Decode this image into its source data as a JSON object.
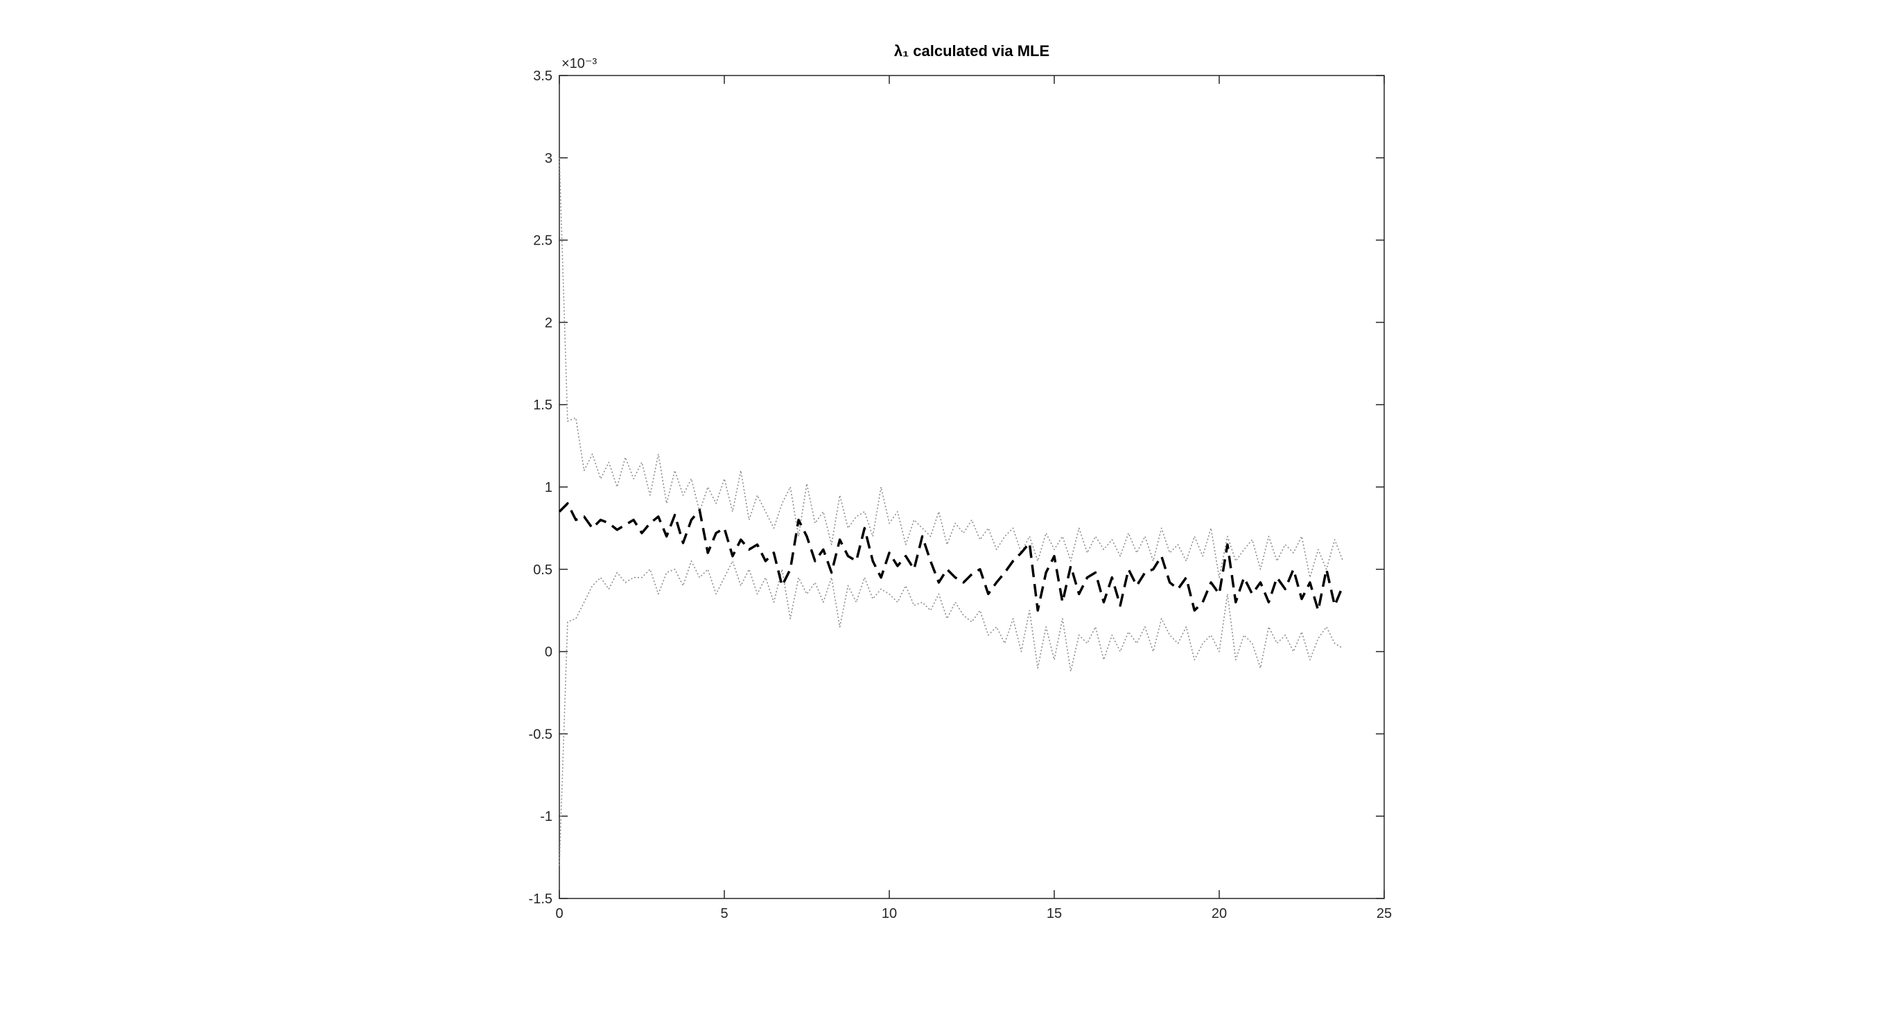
{
  "chart_data": {
    "type": "line",
    "title": "λ₁ calculated via MLE",
    "y_exponent_label": "×10⁻³",
    "xlim": [
      0,
      25
    ],
    "xticks": [
      0,
      5,
      10,
      15,
      20,
      25
    ],
    "ylim": [
      -1.5,
      3.5
    ],
    "yticks": [
      -1.5,
      -1,
      -0.5,
      0,
      0.5,
      1,
      1.5,
      2,
      2.5,
      3,
      3.5
    ],
    "grid": false,
    "x": [
      0,
      0.25,
      0.5,
      0.75,
      1,
      1.25,
      1.5,
      1.75,
      2,
      2.25,
      2.5,
      2.75,
      3,
      3.25,
      3.5,
      3.75,
      4,
      4.25,
      4.5,
      4.75,
      5,
      5.25,
      5.5,
      5.75,
      6,
      6.25,
      6.5,
      6.75,
      7,
      7.25,
      7.5,
      7.75,
      8,
      8.25,
      8.5,
      8.75,
      9,
      9.25,
      9.5,
      9.75,
      10,
      10.25,
      10.5,
      10.75,
      11,
      11.25,
      11.5,
      11.75,
      12,
      12.25,
      12.5,
      12.75,
      13,
      13.25,
      13.5,
      13.75,
      14,
      14.25,
      14.5,
      14.75,
      15,
      15.25,
      15.5,
      15.75,
      16,
      16.25,
      16.5,
      16.75,
      17,
      17.25,
      17.5,
      17.75,
      18,
      18.25,
      18.5,
      18.75,
      19,
      19.25,
      19.5,
      19.75,
      20,
      20.25,
      20.5,
      20.75,
      21,
      21.25,
      21.5,
      21.75,
      22,
      22.25,
      22.5,
      22.75,
      23,
      23.25,
      23.5,
      23.75
    ],
    "series": [
      {
        "color": "#000000",
        "dash": "dashed",
        "values": [
          0.85,
          0.9,
          0.8,
          0.82,
          0.75,
          0.8,
          0.78,
          0.74,
          0.77,
          0.8,
          0.72,
          0.78,
          0.82,
          0.7,
          0.83,
          0.66,
          0.8,
          0.86,
          0.6,
          0.72,
          0.75,
          0.58,
          0.68,
          0.62,
          0.65,
          0.55,
          0.6,
          0.4,
          0.5,
          0.8,
          0.7,
          0.55,
          0.62,
          0.48,
          0.68,
          0.58,
          0.55,
          0.75,
          0.55,
          0.45,
          0.6,
          0.52,
          0.58,
          0.5,
          0.7,
          0.55,
          0.42,
          0.5,
          0.45,
          0.42,
          0.47,
          0.5,
          0.35,
          0.42,
          0.48,
          0.55,
          0.6,
          0.66,
          0.25,
          0.48,
          0.58,
          0.3,
          0.52,
          0.35,
          0.45,
          0.48,
          0.3,
          0.45,
          0.28,
          0.5,
          0.4,
          0.48,
          0.5,
          0.58,
          0.42,
          0.38,
          0.45,
          0.25,
          0.3,
          0.42,
          0.35,
          0.65,
          0.3,
          0.45,
          0.35,
          0.42,
          0.3,
          0.45,
          0.38,
          0.5,
          0.32,
          0.42,
          0.25,
          0.5,
          0.28,
          0.4
        ]
      },
      {
        "color": "#8c8c8c",
        "dash": "dotted",
        "values": [
          3.0,
          1.4,
          1.42,
          1.1,
          1.2,
          1.05,
          1.15,
          1.0,
          1.18,
          1.05,
          1.15,
          0.95,
          1.2,
          0.9,
          1.1,
          0.95,
          1.05,
          0.85,
          1.0,
          0.9,
          1.05,
          0.85,
          1.1,
          0.8,
          0.95,
          0.85,
          0.75,
          0.9,
          1.0,
          0.7,
          1.02,
          0.78,
          0.85,
          0.65,
          0.95,
          0.75,
          0.82,
          0.85,
          0.7,
          1.0,
          0.78,
          0.85,
          0.65,
          0.8,
          0.75,
          0.7,
          0.85,
          0.65,
          0.78,
          0.72,
          0.8,
          0.68,
          0.75,
          0.62,
          0.7,
          0.75,
          0.6,
          0.7,
          0.55,
          0.72,
          0.62,
          0.7,
          0.55,
          0.75,
          0.6,
          0.7,
          0.62,
          0.68,
          0.58,
          0.72,
          0.6,
          0.7,
          0.55,
          0.75,
          0.6,
          0.65,
          0.55,
          0.7,
          0.58,
          0.75,
          0.45,
          0.7,
          0.55,
          0.62,
          0.68,
          0.5,
          0.7,
          0.55,
          0.65,
          0.6,
          0.7,
          0.45,
          0.62,
          0.5,
          0.68,
          0.55
        ]
      },
      {
        "color": "#8c8c8c",
        "dash": "dotted",
        "values": [
          -1.3,
          0.18,
          0.2,
          0.3,
          0.4,
          0.45,
          0.38,
          0.48,
          0.42,
          0.45,
          0.45,
          0.5,
          0.35,
          0.48,
          0.5,
          0.4,
          0.55,
          0.45,
          0.5,
          0.35,
          0.45,
          0.55,
          0.4,
          0.5,
          0.35,
          0.45,
          0.3,
          0.5,
          0.2,
          0.45,
          0.35,
          0.42,
          0.3,
          0.45,
          0.15,
          0.4,
          0.3,
          0.45,
          0.32,
          0.38,
          0.35,
          0.3,
          0.4,
          0.28,
          0.3,
          0.25,
          0.35,
          0.2,
          0.3,
          0.22,
          0.18,
          0.25,
          0.1,
          0.15,
          0.05,
          0.2,
          0.0,
          0.25,
          -0.1,
          0.15,
          -0.05,
          0.2,
          -0.12,
          0.1,
          0.05,
          0.15,
          -0.05,
          0.1,
          0.0,
          0.12,
          0.05,
          0.15,
          0.0,
          0.2,
          0.1,
          0.05,
          0.15,
          -0.05,
          0.05,
          0.1,
          0.0,
          0.35,
          -0.05,
          0.1,
          0.05,
          -0.1,
          0.15,
          0.05,
          0.1,
          0.0,
          0.12,
          -0.05,
          0.08,
          0.15,
          0.05,
          0.02
        ]
      }
    ]
  }
}
